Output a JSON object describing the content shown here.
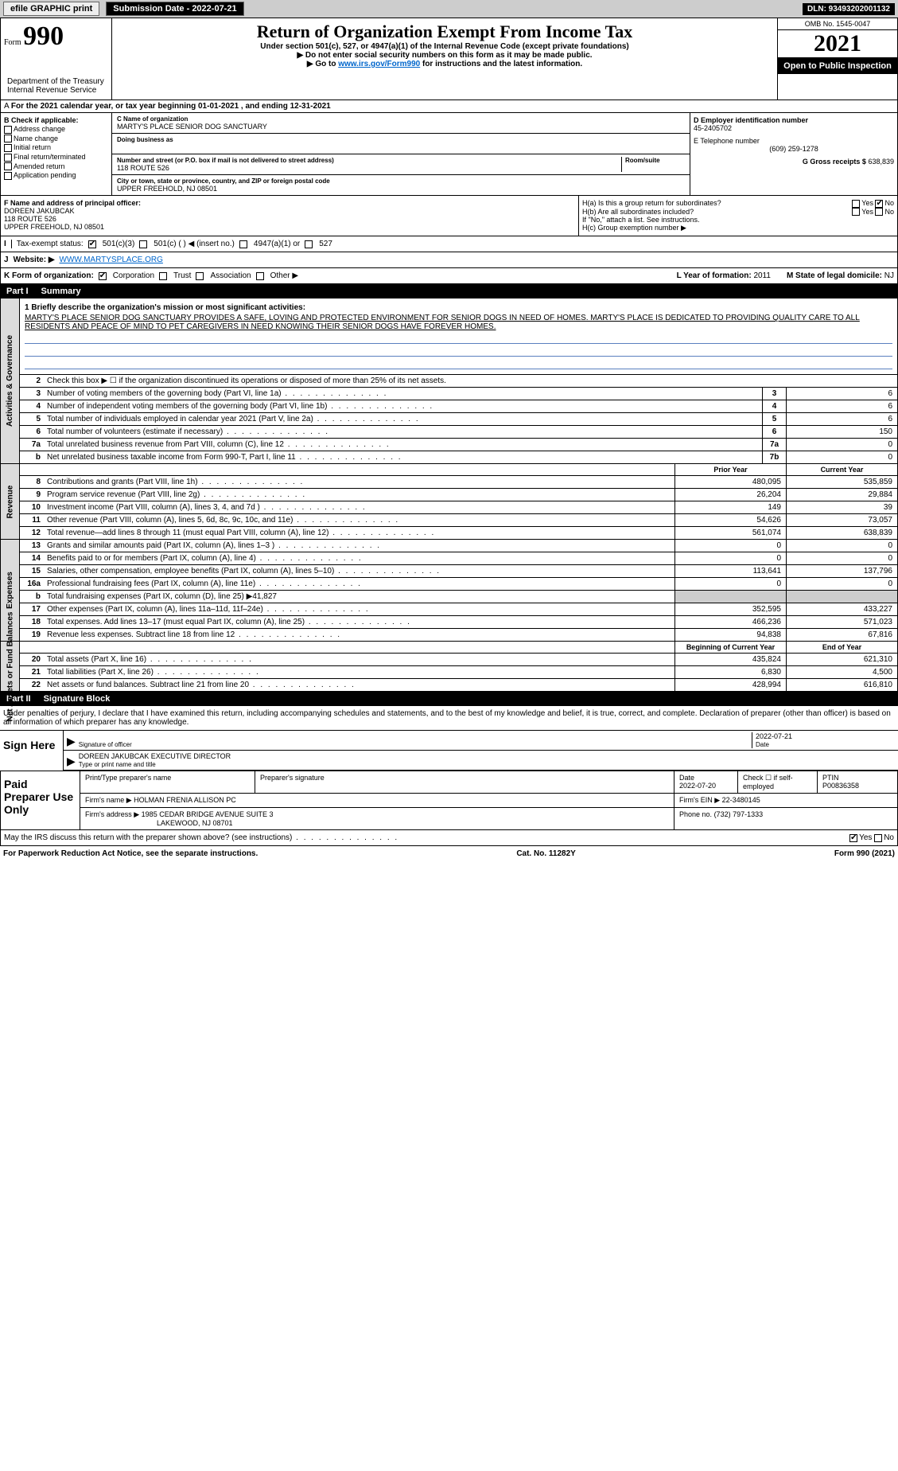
{
  "topbar": {
    "efile": "efile GRAPHIC print",
    "subdate_label": "Submission Date - 2022-07-21",
    "dln": "DLN: 93493202001132"
  },
  "header": {
    "form_prefix": "Form",
    "form_number": "990",
    "title": "Return of Organization Exempt From Income Tax",
    "subtitle": "Under section 501(c), 527, or 4947(a)(1) of the Internal Revenue Code (except private foundations)",
    "note1": "▶ Do not enter social security numbers on this form as it may be made public.",
    "note2_pre": "▶ Go to ",
    "note2_link": "www.irs.gov/Form990",
    "note2_post": " for instructions and the latest information.",
    "omb": "OMB No. 1545-0047",
    "year": "2021",
    "open_pub": "Open to Public Inspection",
    "dept": "Department of the Treasury\nInternal Revenue Service"
  },
  "calendar": {
    "text": "For the 2021 calendar year, or tax year beginning 01-01-2021    , and ending 12-31-2021"
  },
  "boxB": {
    "header": "B Check if applicable:",
    "opts": [
      "Address change",
      "Name change",
      "Initial return",
      "Final return/terminated",
      "Amended return",
      "Application pending"
    ]
  },
  "boxC": {
    "name_label": "C Name of organization",
    "name": "MARTY'S PLACE SENIOR DOG SANCTUARY",
    "dba_label": "Doing business as",
    "addr_label": "Number and street (or P.O. box if mail is not delivered to street address)",
    "room_label": "Room/suite",
    "addr": "118 ROUTE 526",
    "city_label": "City or town, state or province, country, and ZIP or foreign postal code",
    "city": "UPPER FREEHOLD, NJ  08501"
  },
  "boxD": {
    "ein_label": "D Employer identification number",
    "ein": "45-2405702",
    "tel_label": "E Telephone number",
    "tel": "(609) 259-1278",
    "gross_label": "G Gross receipts $",
    "gross": "638,839"
  },
  "boxF": {
    "label": "F  Name and address of principal officer:",
    "name": "DOREEN JAKUBCAK",
    "addr1": "118 ROUTE 526",
    "addr2": "UPPER FREEHOLD, NJ  08501"
  },
  "boxH": {
    "ha": "H(a)  Is this a group return for subordinates?",
    "hb": "H(b)  Are all subordinates included?",
    "hb_note": "If \"No,\" attach a list. See instructions.",
    "hc": "H(c)  Group exemption number ▶",
    "yes": "Yes",
    "no": "No"
  },
  "taxstatus": {
    "label": "Tax-exempt status:",
    "o1": "501(c)(3)",
    "o2": "501(c) (  ) ◀ (insert no.)",
    "o3": "4947(a)(1) or",
    "o4": "527"
  },
  "website": {
    "label": "Website: ▶",
    "value": "WWW.MARTYSPLACE.ORG"
  },
  "korg": {
    "label": "K Form of organization:",
    "o1": "Corporation",
    "o2": "Trust",
    "o3": "Association",
    "o4": "Other ▶",
    "l_label": "L Year of formation:",
    "l_val": "2011",
    "m_label": "M State of legal domicile:",
    "m_val": "NJ"
  },
  "part1": {
    "num": "Part I",
    "title": "Summary"
  },
  "mission": {
    "q": "1  Briefly describe the organization's mission or most significant activities:",
    "text": "MARTY'S PLACE SENIOR DOG SANCTUARY PROVIDES A SAFE, LOVING AND PROTECTED ENVIRONMENT FOR SENIOR DOGS IN NEED OF HOMES. MARTY'S PLACE IS DEDICATED TO PROVIDING QUALITY CARE TO ALL RESIDENTS AND PEACE OF MIND TO PET CAREGIVERS IN NEED KNOWING THEIR SENIOR DOGS HAVE FOREVER HOMES."
  },
  "gov_section": {
    "label": "Activities & Governance",
    "rows": [
      {
        "n": "2",
        "d": "Check this box ▶ ☐ if the organization discontinued its operations or disposed of more than 25% of its net assets."
      },
      {
        "n": "3",
        "d": "Number of voting members of the governing body (Part VI, line 1a)",
        "box": "3",
        "v": "6"
      },
      {
        "n": "4",
        "d": "Number of independent voting members of the governing body (Part VI, line 1b)",
        "box": "4",
        "v": "6"
      },
      {
        "n": "5",
        "d": "Total number of individuals employed in calendar year 2021 (Part V, line 2a)",
        "box": "5",
        "v": "6"
      },
      {
        "n": "6",
        "d": "Total number of volunteers (estimate if necessary)",
        "box": "6",
        "v": "150"
      },
      {
        "n": "7a",
        "d": "Total unrelated business revenue from Part VIII, column (C), line 12",
        "box": "7a",
        "v": "0"
      },
      {
        "n": "b",
        "d": "Net unrelated business taxable income from Form 990-T, Part I, line 11",
        "box": "7b",
        "v": "0"
      }
    ]
  },
  "rev_section": {
    "label": "Revenue",
    "head_prior": "Prior Year",
    "head_curr": "Current Year",
    "rows": [
      {
        "n": "8",
        "d": "Contributions and grants (Part VIII, line 1h)",
        "p": "480,095",
        "c": "535,859"
      },
      {
        "n": "9",
        "d": "Program service revenue (Part VIII, line 2g)",
        "p": "26,204",
        "c": "29,884"
      },
      {
        "n": "10",
        "d": "Investment income (Part VIII, column (A), lines 3, 4, and 7d )",
        "p": "149",
        "c": "39"
      },
      {
        "n": "11",
        "d": "Other revenue (Part VIII, column (A), lines 5, 6d, 8c, 9c, 10c, and 11e)",
        "p": "54,626",
        "c": "73,057"
      },
      {
        "n": "12",
        "d": "Total revenue—add lines 8 through 11 (must equal Part VIII, column (A), line 12)",
        "p": "561,074",
        "c": "638,839"
      }
    ]
  },
  "exp_section": {
    "label": "Expenses",
    "rows": [
      {
        "n": "13",
        "d": "Grants and similar amounts paid (Part IX, column (A), lines 1–3 )",
        "p": "0",
        "c": "0"
      },
      {
        "n": "14",
        "d": "Benefits paid to or for members (Part IX, column (A), line 4)",
        "p": "0",
        "c": "0"
      },
      {
        "n": "15",
        "d": "Salaries, other compensation, employee benefits (Part IX, column (A), lines 5–10)",
        "p": "113,641",
        "c": "137,796"
      },
      {
        "n": "16a",
        "d": "Professional fundraising fees (Part IX, column (A), line 11e)",
        "p": "0",
        "c": "0"
      },
      {
        "n": "b",
        "d": "Total fundraising expenses (Part IX, column (D), line 25) ▶41,827",
        "shaded": true
      },
      {
        "n": "17",
        "d": "Other expenses (Part IX, column (A), lines 11a–11d, 11f–24e)",
        "p": "352,595",
        "c": "433,227"
      },
      {
        "n": "18",
        "d": "Total expenses. Add lines 13–17 (must equal Part IX, column (A), line 25)",
        "p": "466,236",
        "c": "571,023"
      },
      {
        "n": "19",
        "d": "Revenue less expenses. Subtract line 18 from line 12",
        "p": "94,838",
        "c": "67,816"
      }
    ]
  },
  "net_section": {
    "label": "Net Assets or Fund Balances",
    "head_prior": "Beginning of Current Year",
    "head_curr": "End of Year",
    "rows": [
      {
        "n": "20",
        "d": "Total assets (Part X, line 16)",
        "p": "435,824",
        "c": "621,310"
      },
      {
        "n": "21",
        "d": "Total liabilities (Part X, line 26)",
        "p": "6,830",
        "c": "4,500"
      },
      {
        "n": "22",
        "d": "Net assets or fund balances. Subtract line 21 from line 20",
        "p": "428,994",
        "c": "616,810"
      }
    ]
  },
  "part2": {
    "num": "Part II",
    "title": "Signature Block"
  },
  "declare": "Under penalties of perjury, I declare that I have examined this return, including accompanying schedules and statements, and to the best of my knowledge and belief, it is true, correct, and complete. Declaration of preparer (other than officer) is based on all information of which preparer has any knowledge.",
  "sign": {
    "label": "Sign Here",
    "sig_label": "Signature of officer",
    "date": "2022-07-21",
    "date_label": "Date",
    "name": "DOREEN JAKUBCAK  EXECUTIVE DIRECTOR",
    "name_label": "Type or print name and title"
  },
  "prep": {
    "label": "Paid Preparer Use Only",
    "h1": "Print/Type preparer's name",
    "h2": "Preparer's signature",
    "h3": "Date",
    "date": "2022-07-20",
    "h4": "Check ☐ if self-employed",
    "h5": "PTIN",
    "ptin": "P00836358",
    "firm_label": "Firm's name    ▶",
    "firm": "HOLMAN FRENIA ALLISON PC",
    "ein_label": "Firm's EIN ▶",
    "ein": "22-3480145",
    "addr_label": "Firm's address ▶",
    "addr": "1985 CEDAR BRIDGE AVENUE SUITE 3",
    "addr2": "LAKEWOOD, NJ  08701",
    "phone_label": "Phone no.",
    "phone": "(732) 797-1333"
  },
  "footer": {
    "q": "May the IRS discuss this return with the preparer shown above? (see instructions)",
    "yes": "Yes",
    "no": "No",
    "pra": "For Paperwork Reduction Act Notice, see the separate instructions.",
    "cat": "Cat. No. 11282Y",
    "form": "Form 990 (2021)"
  }
}
